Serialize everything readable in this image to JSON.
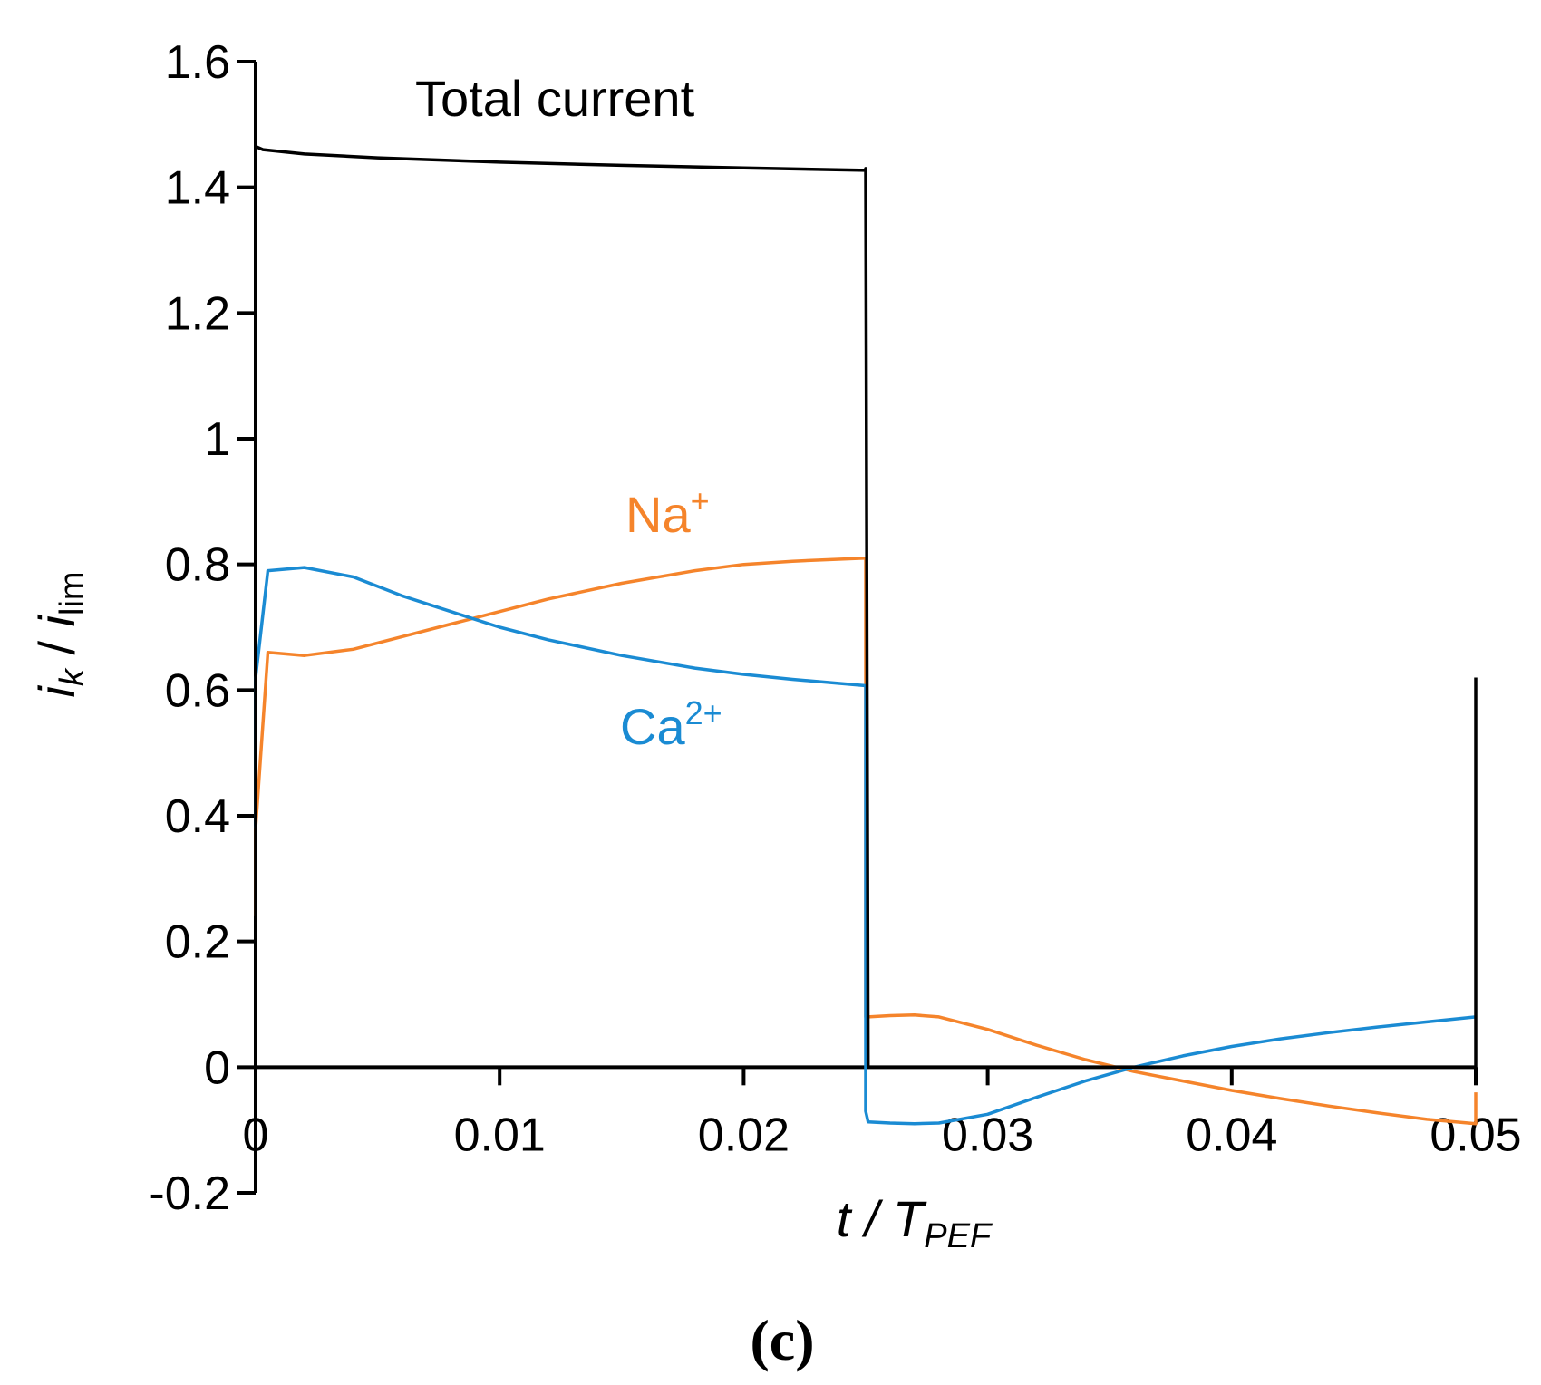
{
  "chart_data": {
    "type": "line",
    "title": "",
    "xlabel": {
      "main": "t / T",
      "subscript": "PEF"
    },
    "ylabel": {
      "i": "i",
      "k": "k",
      "slash": " / ",
      "i2": "i",
      "lim": "lim"
    },
    "xlim": [
      0,
      0.05
    ],
    "ylim": [
      -0.2,
      1.6
    ],
    "x_ticks": [
      0,
      0.01,
      0.02,
      0.03,
      0.04,
      0.05
    ],
    "x_tick_labels": [
      "0",
      "0.01",
      "0.02",
      "0.03",
      "0.04",
      "0.05"
    ],
    "y_ticks": [
      -0.2,
      0,
      0.2,
      0.4,
      0.6,
      0.8,
      1,
      1.2,
      1.4,
      1.6
    ],
    "y_tick_labels": [
      "-0.2",
      "0",
      "0.2",
      "0.4",
      "0.6",
      "0.8",
      "1",
      "1.2",
      "1.4",
      "1.6"
    ],
    "grid": false,
    "panel_label": "(c)",
    "series": [
      {
        "name": "Total current",
        "label_text": "Total current",
        "label_sup": "",
        "color": "#000000",
        "x": [
          0,
          0,
          0.0003,
          0.002,
          0.005,
          0.01,
          0.015,
          0.02,
          0.025,
          0.025,
          0.0251,
          0.05,
          0.05
        ],
        "y": [
          0,
          1.465,
          1.46,
          1.453,
          1.447,
          1.44,
          1.435,
          1.431,
          1.427,
          1.43,
          0,
          0,
          0.62
        ]
      },
      {
        "name": "Na+",
        "label_text": "Na",
        "label_sup": "+",
        "color": "#F5842B",
        "x": [
          0,
          0,
          0.0005,
          0.002,
          0.004,
          0.006,
          0.008,
          0.01,
          0.012,
          0.015,
          0.018,
          0.02,
          0.022,
          0.025,
          0.025,
          0.025,
          0.0251,
          0.026,
          0.027,
          0.028,
          0.03,
          0.032,
          0.034,
          0.036,
          0.038,
          0.04,
          0.042,
          0.044,
          0.046,
          0.048,
          0.05,
          0.05
        ],
        "y": [
          0.24,
          0.38,
          0.66,
          0.655,
          0.665,
          0.685,
          0.705,
          0.725,
          0.745,
          0.77,
          0.79,
          0.8,
          0.805,
          0.81,
          0.7,
          0.08,
          0.08,
          0.082,
          0.083,
          0.08,
          0.06,
          0.035,
          0.012,
          -0.007,
          -0.022,
          -0.037,
          -0.05,
          -0.062,
          -0.073,
          -0.083,
          -0.09,
          -0.04
        ]
      },
      {
        "name": "Ca2+",
        "label_text": "Ca",
        "label_sup": "2+",
        "color": "#1A8BD3",
        "x": [
          0,
          0,
          0.0005,
          0.002,
          0.004,
          0.006,
          0.008,
          0.01,
          0.012,
          0.015,
          0.018,
          0.02,
          0.022,
          0.025,
          0.025,
          0.025,
          0.0251,
          0.026,
          0.027,
          0.028,
          0.03,
          0.032,
          0.034,
          0.036,
          0.038,
          0.04,
          0.042,
          0.044,
          0.046,
          0.048,
          0.05
        ],
        "y": [
          0.38,
          0.62,
          0.79,
          0.795,
          0.78,
          0.75,
          0.725,
          0.7,
          0.68,
          0.655,
          0.635,
          0.625,
          0.617,
          0.607,
          0.45,
          -0.07,
          -0.087,
          -0.089,
          -0.09,
          -0.089,
          -0.075,
          -0.048,
          -0.022,
          0.0,
          0.018,
          0.033,
          0.045,
          0.055,
          0.064,
          0.072,
          0.08
        ]
      }
    ]
  }
}
